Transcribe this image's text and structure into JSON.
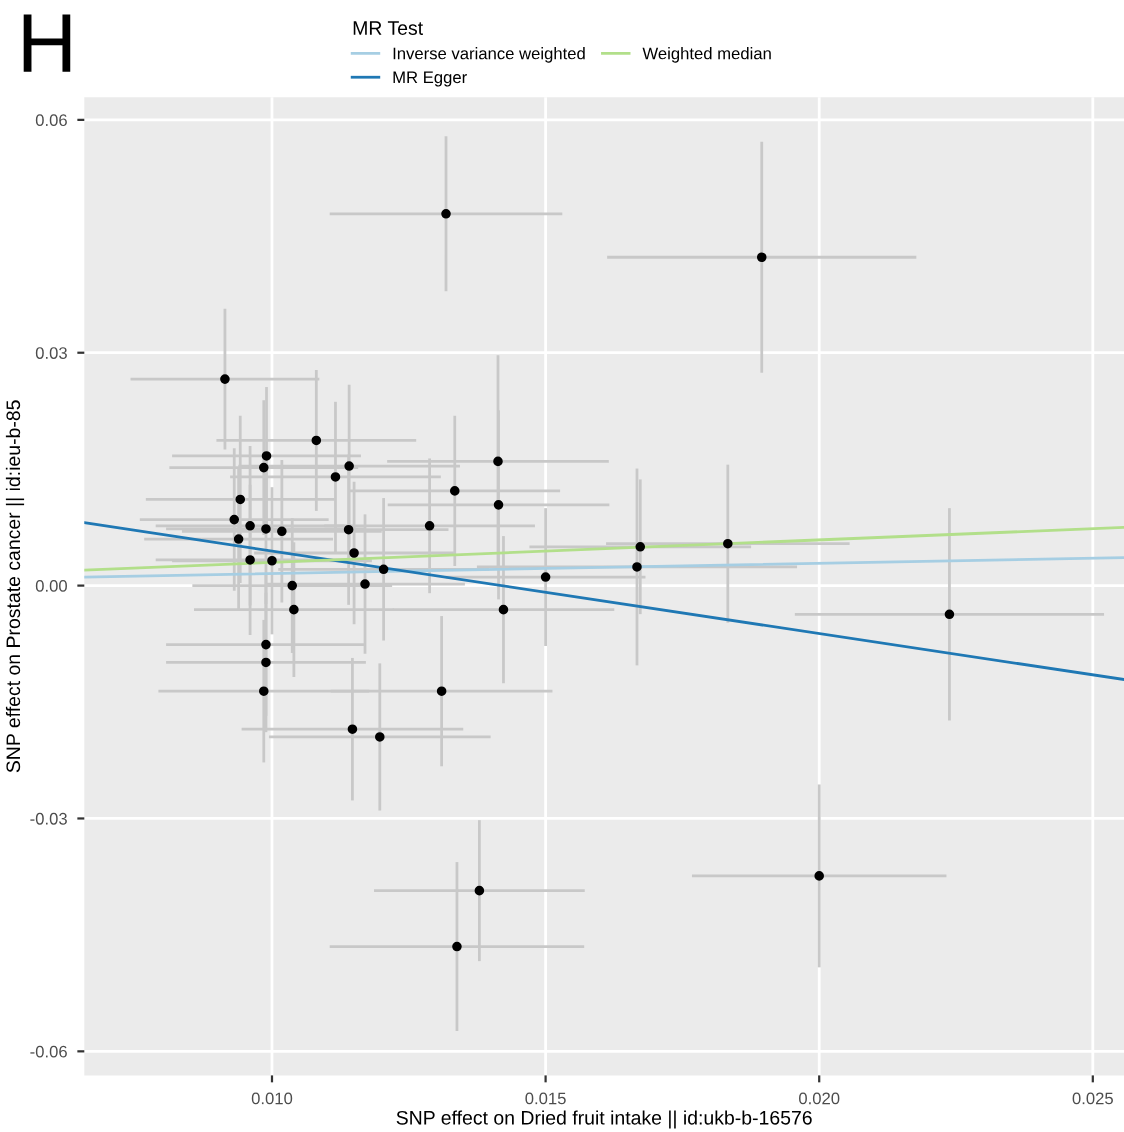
{
  "chart_data": {
    "type": "scatter",
    "title": "H",
    "xlabel": "SNP effect on Dried fruit intake || id:ukb-b-16576",
    "ylabel": "SNP effect on Prostate cancer || id:ieu-b-85",
    "legend_title": "MR Test",
    "legend": "top",
    "grid": true,
    "xlim": [
      0.00657,
      0.02557
    ],
    "ylim": [
      -0.0631,
      0.0629
    ],
    "xticks": [
      {
        "value": 0.01,
        "label": "0.010"
      },
      {
        "value": 0.015,
        "label": "0.015"
      },
      {
        "value": 0.02,
        "label": "0.020"
      },
      {
        "value": 0.025,
        "label": "0.025"
      }
    ],
    "yticks": [
      -0.06,
      -0.03,
      {
        "value": 0,
        "label": "0.00"
      },
      0.03,
      0.06
    ],
    "series": [
      {
        "color": "#000000",
        "marker": "circle",
        "x": [
          0.00914,
          0.01081,
          0.0099,
          0.00985,
          0.01116,
          0.01141,
          0.00942,
          0.00931,
          0.0096,
          0.00989,
          0.01018,
          0.00939,
          0.0114,
          0.0115,
          0.0096,
          0.01,
          0.01204,
          0.01037,
          0.0117,
          0.0104,
          0.00989,
          0.00989,
          0.00985,
          0.01147,
          0.01197,
          0.01288,
          0.01334,
          0.01413,
          0.01414,
          0.01423,
          0.0131,
          0.01895,
          0.01318,
          0.015,
          0.01673,
          0.01667,
          0.01833,
          0.02238,
          0.01379,
          0.01338,
          0.02
        ],
        "values": [
          0.0266,
          0.0187,
          0.0167,
          0.0152,
          0.014,
          0.0154,
          0.0111,
          0.0085,
          0.0077,
          0.0073,
          0.007,
          0.006,
          0.0072,
          0.0042,
          0.0033,
          0.0032,
          0.0021,
          0.0,
          0.0002,
          -0.0031,
          -0.0076,
          -0.0099,
          -0.0136,
          -0.0185,
          -0.0195,
          0.0077,
          0.0122,
          0.016,
          0.0104,
          -0.0031,
          -0.0136,
          0.0423,
          0.0479,
          0.0011,
          0.005,
          0.0024,
          0.0054,
          -0.0037,
          -0.0393,
          -0.0465,
          -0.0374
        ],
        "errors": [
          0.0089,
          0.0089,
          0.0087,
          0.0085,
          0.0095,
          0.0103,
          0.0106,
          0.009,
          0.0101,
          0.0095,
          0.009,
          0.009,
          0.0095,
          0.009,
          0.0095,
          0.0093,
          0.009,
          0.0085,
          0.0088,
          0.0085,
          0.009,
          0.0088,
          0.009,
          0.009,
          0.0093,
          0.0085,
          0.0095,
          0.0135,
          0.012,
          0.0093,
          0.0095,
          0.0147,
          0.0098,
          0.0087,
          0.0085,
          0.0125,
          0.01,
          0.0135,
          0.0089,
          0.0107,
          0.0116
        ],
        "xerrors": [
          0.0017,
          0.0018,
          0.0017,
          0.0017,
          0.0019,
          0.002,
          0.0017,
          0.0017,
          0.0017,
          0.0018,
          0.0018,
          0.0017,
          0.0018,
          0.0018,
          0.0017,
          0.0018,
          0.0019,
          0.0018,
          0.0018,
          0.0018,
          0.0018,
          0.0018,
          0.0019,
          0.002,
          0.002,
          0.0019,
          0.0019,
          0.002,
          0.002,
          0.002,
          0.002,
          0.0028,
          0.0021,
          0.0018,
          0.002,
          0.0029,
          0.0022,
          0.0028,
          0.0019,
          0.0023,
          0.0023
        ]
      },
      {
        "type": "line",
        "name": "Inverse variance weighted",
        "color": "#a6cee3",
        "x": [
          0.00657,
          0.02557
        ],
        "values": [
          0.0011,
          0.0036
        ]
      },
      {
        "type": "line",
        "name": "MR Egger",
        "color": "#1f78b4",
        "x": [
          0.00657,
          0.02557
        ],
        "values": [
          0.0081,
          -0.0121
        ]
      },
      {
        "type": "line",
        "name": "Weighted median",
        "color": "#b2df8a",
        "x": [
          0.00657,
          0.02557
        ],
        "values": [
          0.002,
          0.0075
        ]
      }
    ]
  }
}
